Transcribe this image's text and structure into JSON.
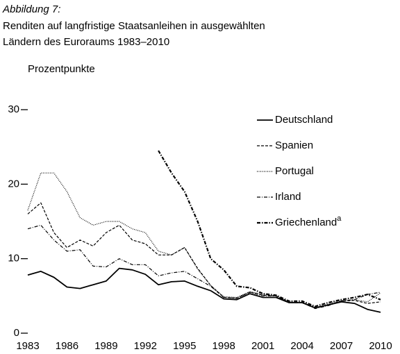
{
  "chart_data": {
    "type": "line",
    "label": "Abbildung 7:",
    "title_lines": [
      "Renditen auf langfristige Staatsanleihen in ausgewählten",
      "Ländern des Euroraums 1983–2010"
    ],
    "ylabel": "Prozentpunkte",
    "x": [
      1983,
      1984,
      1985,
      1986,
      1987,
      1988,
      1989,
      1990,
      1991,
      1992,
      1993,
      1994,
      1995,
      1996,
      1997,
      1998,
      1999,
      2000,
      2001,
      2002,
      2003,
      2004,
      2005,
      2006,
      2007,
      2008,
      2009,
      2010
    ],
    "xlim": [
      1983,
      2010
    ],
    "xticks": [
      1983,
      1986,
      1989,
      1992,
      1995,
      1998,
      2001,
      2004,
      2007,
      2010
    ],
    "ylim": [
      0,
      30
    ],
    "yticks": [
      0,
      10,
      20,
      30
    ],
    "grid": false,
    "series": [
      {
        "name": "Deutschland",
        "color": "#000000",
        "style": "solid",
        "values": [
          7.8,
          8.3,
          7.5,
          6.2,
          6.0,
          6.5,
          7.0,
          8.7,
          8.5,
          7.9,
          6.5,
          6.9,
          7.0,
          6.3,
          5.7,
          4.6,
          4.5,
          5.3,
          4.8,
          4.8,
          4.1,
          4.1,
          3.4,
          3.8,
          4.2,
          4.0,
          3.2,
          2.8
        ]
      },
      {
        "name": "Spanien",
        "color": "#000000",
        "style": "dashed",
        "values": [
          16,
          17.5,
          13.5,
          11.5,
          12.5,
          11.7,
          13.5,
          14.5,
          12.5,
          12,
          10.5,
          10.5,
          11.5,
          8.7,
          6.4,
          4.8,
          4.7,
          5.5,
          5.1,
          5.0,
          4.1,
          4.1,
          3.4,
          3.8,
          4.3,
          4.4,
          4.0,
          4.2
        ]
      },
      {
        "name": "Portugal",
        "color": "#000000",
        "style": "dotted",
        "values": [
          16.5,
          21.5,
          21.5,
          19,
          15.5,
          14.5,
          15,
          15,
          14,
          13.5,
          11,
          10.5,
          11.5,
          8.6,
          6.4,
          4.9,
          4.8,
          5.6,
          5.2,
          5.0,
          4.2,
          4.1,
          3.4,
          3.9,
          4.4,
          4.5,
          4.2,
          5.4
        ]
      },
      {
        "name": "Irland",
        "color": "#000000",
        "style": "dashdot",
        "values": [
          14,
          14.5,
          12.5,
          11,
          11.2,
          9,
          8.9,
          10,
          9.2,
          9.2,
          7.7,
          8.1,
          8.3,
          7.3,
          6.3,
          4.8,
          4.7,
          5.5,
          5.0,
          5.0,
          4.1,
          4.1,
          3.3,
          3.7,
          4.3,
          4.5,
          5.2,
          5.5
        ]
      },
      {
        "name": "Griechenland",
        "name_superscript": "a",
        "color": "#000000",
        "style": "dashdot-heavy",
        "values": [
          null,
          null,
          null,
          null,
          null,
          null,
          null,
          null,
          null,
          null,
          24.5,
          21.5,
          19,
          15,
          10,
          8.5,
          6.3,
          6.1,
          5.3,
          5.1,
          4.3,
          4.3,
          3.6,
          4.1,
          4.5,
          4.8,
          5.2,
          4.5
        ]
      }
    ]
  }
}
